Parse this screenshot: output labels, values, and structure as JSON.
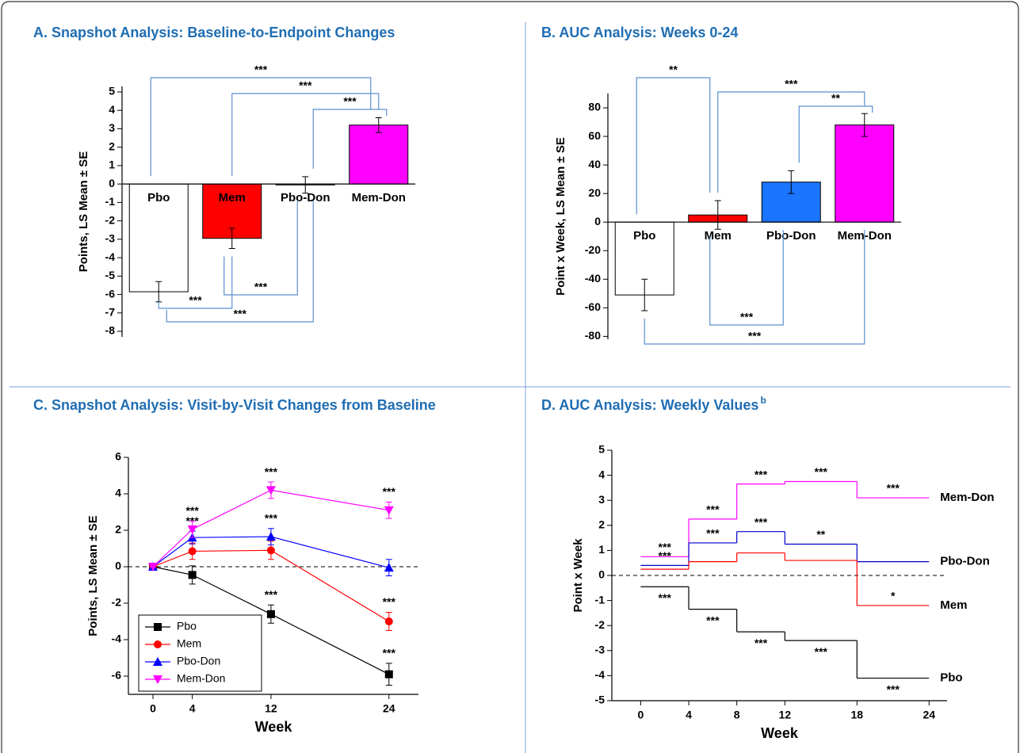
{
  "chart_data": [
    {
      "type": "bar",
      "title": "A. Snapshot Analysis: Baseline-to-Endpoint Changes",
      "ylabel": "Points, LS Mean ± SE",
      "categories": [
        "Pbo",
        "Mem",
        "Pbo-Don",
        "Mem-Don"
      ],
      "values": [
        -5.85,
        -2.95,
        -0.05,
        3.2
      ],
      "errors": [
        0.55,
        0.55,
        0.45,
        0.4
      ],
      "colors": [
        "#ffffff",
        "#ff0000",
        "#ffffff",
        "#ff00ff"
      ],
      "ylim": [
        -8.3,
        5.3
      ],
      "yticks": [
        -8,
        -7,
        -6,
        -5,
        -4,
        -3,
        -2,
        -1,
        0,
        1,
        2,
        3,
        4,
        5
      ],
      "brackets_above": [
        {
          "from": "Pbo",
          "to": "Mem-Don",
          "label": "***"
        },
        {
          "from": "Mem",
          "to": "Mem-Don",
          "label": "***"
        },
        {
          "from": "Pbo-Don",
          "to": "Mem-Don",
          "label": "***"
        }
      ],
      "brackets_below": [
        {
          "from": "Mem",
          "to": "Pbo-Don",
          "label": "***"
        },
        {
          "from": "Pbo",
          "to": "Mem",
          "label": "***"
        },
        {
          "from": "Pbo",
          "to": "Pbo-Don",
          "label": "***"
        }
      ]
    },
    {
      "type": "bar",
      "title": "B. AUC Analysis: Weeks 0-24",
      "ylabel": "Point x Week, LS Mean ± SE",
      "categories": [
        "Pbo",
        "Mem",
        "Pbo-Don",
        "Mem-Don"
      ],
      "values": [
        -51,
        5,
        28,
        68
      ],
      "errors": [
        11,
        10,
        8,
        8
      ],
      "colors": [
        "#ffffff",
        "#ff0000",
        "#1a75ff",
        "#ff00ff"
      ],
      "ylim": [
        -82,
        90
      ],
      "yticks": [
        -80,
        -60,
        -40,
        -20,
        0,
        20,
        40,
        60,
        80
      ],
      "brackets_above": [
        {
          "from": "Pbo",
          "to": "Mem",
          "label": "**"
        },
        {
          "from": "Mem",
          "to": "Mem-Don",
          "label": "***"
        },
        {
          "from": "Pbo-Don",
          "to": "Mem-Don",
          "label": "**"
        }
      ],
      "brackets_below": [
        {
          "from": "Mem",
          "to": "Pbo-Don",
          "label": "***"
        },
        {
          "from": "Pbo",
          "to": "Mem-Don",
          "label": "***"
        }
      ]
    },
    {
      "type": "line",
      "title": "C. Snapshot Analysis: Visit-by-Visit Changes from Baseline",
      "xlabel": "Week",
      "ylabel": "Points, LS Mean ± SE",
      "x": [
        0,
        4,
        12,
        24
      ],
      "xlim": [
        -2.5,
        27
      ],
      "xticks": [
        0,
        4,
        12,
        24
      ],
      "ylim": [
        -7,
        6
      ],
      "yticks": [
        -6,
        -4,
        -2,
        0,
        2,
        4,
        6
      ],
      "reference_line": 0,
      "legend": "lower left",
      "series": [
        {
          "name": "Pbo",
          "color": "#000000",
          "marker": "square",
          "values": [
            0,
            -0.45,
            -2.6,
            -5.9
          ],
          "errors": [
            null,
            0.5,
            0.5,
            0.6
          ],
          "significance": [
            null,
            null,
            "***",
            "***"
          ]
        },
        {
          "name": "Mem",
          "color": "#ff0000",
          "marker": "circle",
          "values": [
            0,
            0.85,
            0.9,
            -3.0
          ],
          "errors": [
            null,
            0.45,
            0.5,
            0.5
          ],
          "significance": [
            null,
            null,
            null,
            "***"
          ]
        },
        {
          "name": "Pbo-Don",
          "color": "#0000ff",
          "marker": "triangle-up",
          "values": [
            0,
            1.6,
            1.65,
            -0.05
          ],
          "errors": [
            null,
            0.35,
            0.45,
            0.45
          ],
          "significance": [
            null,
            "***",
            "***",
            null
          ]
        },
        {
          "name": "Mem-Don",
          "color": "#ff00ff",
          "marker": "triangle-down",
          "values": [
            0,
            2.05,
            4.2,
            3.1
          ],
          "errors": [
            null,
            0.45,
            0.45,
            0.45
          ],
          "significance": [
            null,
            "***",
            "***",
            "***"
          ]
        }
      ]
    },
    {
      "type": "step",
      "title": "D. AUC Analysis: Weekly Values",
      "title_superscript": "b",
      "xlabel": "Week",
      "ylabel": "Point x Week",
      "x_edges": [
        0,
        4,
        8,
        12,
        18,
        24
      ],
      "xlim": [
        -2.4,
        25.5
      ],
      "xticks": [
        0,
        4,
        8,
        12,
        18,
        24
      ],
      "ylim": [
        -5,
        5
      ],
      "yticks": [
        -5,
        -4,
        -3,
        -2,
        -1,
        0,
        1,
        2,
        3,
        4,
        5
      ],
      "reference_line": 0,
      "series": [
        {
          "name": "Mem-Don",
          "color": "#ff00ff",
          "values": [
            0.75,
            2.25,
            3.65,
            3.75,
            3.1
          ],
          "significance": [
            "***",
            "***",
            "***",
            "***",
            "***"
          ]
        },
        {
          "name": "Pbo-Don",
          "color": "#0000cc",
          "values": [
            0.4,
            1.3,
            1.75,
            1.25,
            0.55
          ],
          "significance": [
            "***",
            "***",
            "***",
            "**",
            null
          ]
        },
        {
          "name": "Mem",
          "color": "#ff0000",
          "values": [
            0.25,
            0.55,
            0.9,
            0.6,
            -1.2
          ],
          "significance": [
            null,
            null,
            null,
            null,
            "*"
          ]
        },
        {
          "name": "Pbo",
          "color": "#000000",
          "values": [
            -0.45,
            -1.35,
            -2.25,
            -2.6,
            -4.1
          ],
          "significance": [
            "***",
            "***",
            "***",
            "***",
            "***"
          ]
        }
      ]
    }
  ]
}
